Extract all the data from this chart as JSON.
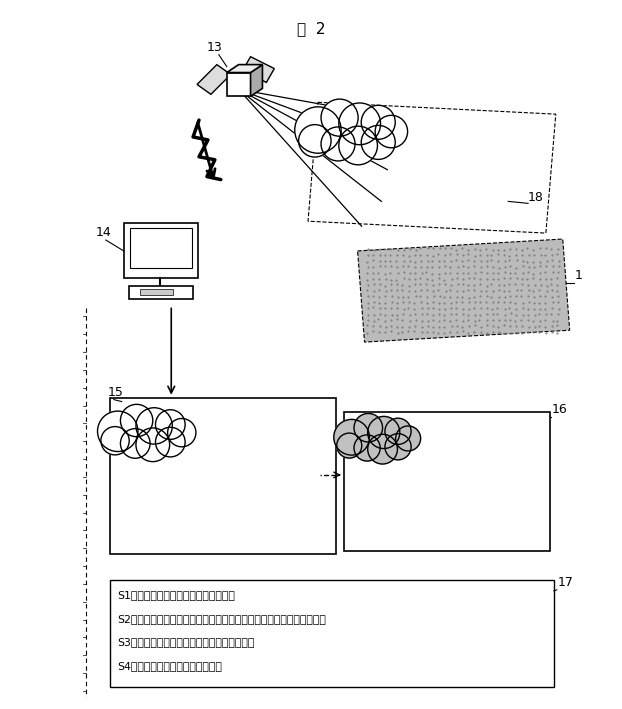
{
  "title": "図  2",
  "title_fontsize": 11,
  "bg_color": "#ffffff",
  "label_13": "13",
  "label_14": "14",
  "label_15": "15",
  "label_16": "16",
  "label_17": "17",
  "label_18": "18",
  "label_1": "1",
  "text_lines": [
    "S1：気象衛星による雲画像の取り込み",
    "S2：雲画像処理による雲による日射量の反射率，雲の移動速度の算出",
    "S3：将来の雲の動きの予測シミュレーション",
    "S4：対象地区の地表の日射量予測"
  ],
  "line_color": "#000000",
  "cloud_fill": "#ffffff",
  "cloud_fill_dotted": "#c0c0c0",
  "box_edge": "#000000"
}
